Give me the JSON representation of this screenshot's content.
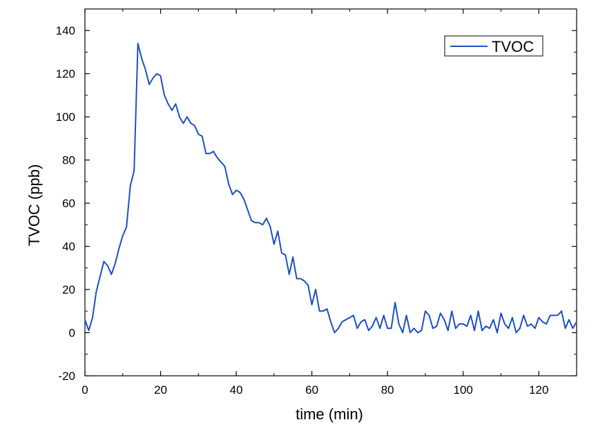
{
  "chart_data": {
    "type": "line",
    "xlabel": "time (min)",
    "ylabel": "TVOC (ppb)",
    "xlim": [
      0,
      130
    ],
    "ylim": [
      -20,
      150
    ],
    "xticks": [
      0,
      20,
      40,
      60,
      80,
      100,
      120
    ],
    "xtick_labels": [
      "0",
      "20",
      "40",
      "60",
      "80",
      "100",
      "120"
    ],
    "yticks": [
      -20,
      0,
      20,
      40,
      60,
      80,
      100,
      120,
      140
    ],
    "ytick_labels": [
      "-20",
      "0",
      "20",
      "40",
      "60",
      "80",
      "100",
      "120",
      "140"
    ],
    "grid": false,
    "legend_position": "top-right",
    "series": [
      {
        "name": "TVOC",
        "color": "#1a4fc4",
        "x": [
          0,
          1,
          2,
          3,
          4,
          5,
          6,
          7,
          8,
          9,
          10,
          11,
          12,
          13,
          14,
          15,
          16,
          17,
          18,
          19,
          20,
          21,
          22,
          23,
          24,
          25,
          26,
          27,
          28,
          29,
          30,
          31,
          32,
          33,
          34,
          35,
          36,
          37,
          38,
          39,
          40,
          41,
          42,
          43,
          44,
          45,
          46,
          47,
          48,
          49,
          50,
          51,
          52,
          53,
          54,
          55,
          56,
          57,
          58,
          59,
          60,
          61,
          62,
          63,
          64,
          65,
          66,
          67,
          68,
          69,
          70,
          71,
          72,
          73,
          74,
          75,
          76,
          77,
          78,
          79,
          80,
          81,
          82,
          83,
          84,
          85,
          86,
          87,
          88,
          89,
          90,
          91,
          92,
          93,
          94,
          95,
          96,
          97,
          98,
          99,
          100,
          101,
          102,
          103,
          104,
          105,
          106,
          107,
          108,
          109,
          110,
          111,
          112,
          113,
          114,
          115,
          116,
          117,
          118,
          119,
          120,
          121,
          122,
          123,
          124,
          125,
          126,
          127,
          128,
          129,
          130
        ],
        "y": [
          6,
          1,
          7,
          19,
          26,
          33,
          31,
          27,
          32,
          39,
          45,
          49,
          68,
          75,
          134,
          127,
          122,
          115,
          118,
          120,
          119,
          110,
          106,
          103,
          106,
          100,
          97,
          100,
          97,
          96,
          92,
          91,
          83,
          83,
          84,
          81,
          79,
          77,
          69,
          64,
          66,
          65,
          62,
          57,
          52,
          51,
          51,
          50,
          53,
          49,
          41,
          47,
          37,
          36,
          27,
          35,
          25,
          25,
          24,
          22,
          13,
          20,
          10,
          10,
          11,
          5,
          0,
          2,
          5,
          6,
          7,
          8,
          2,
          5,
          6,
          1,
          3,
          7,
          2,
          8,
          2,
          2,
          14,
          4,
          0,
          8,
          0,
          2,
          0,
          1,
          10,
          8,
          2,
          3,
          9,
          6,
          1,
          10,
          2,
          4,
          4,
          3,
          8,
          1,
          10,
          1,
          3,
          2,
          6,
          0,
          9,
          4,
          2,
          7,
          0,
          2,
          8,
          3,
          4,
          2,
          7,
          5,
          4,
          8,
          8,
          8,
          10,
          2,
          6,
          2,
          5
        ]
      }
    ]
  }
}
